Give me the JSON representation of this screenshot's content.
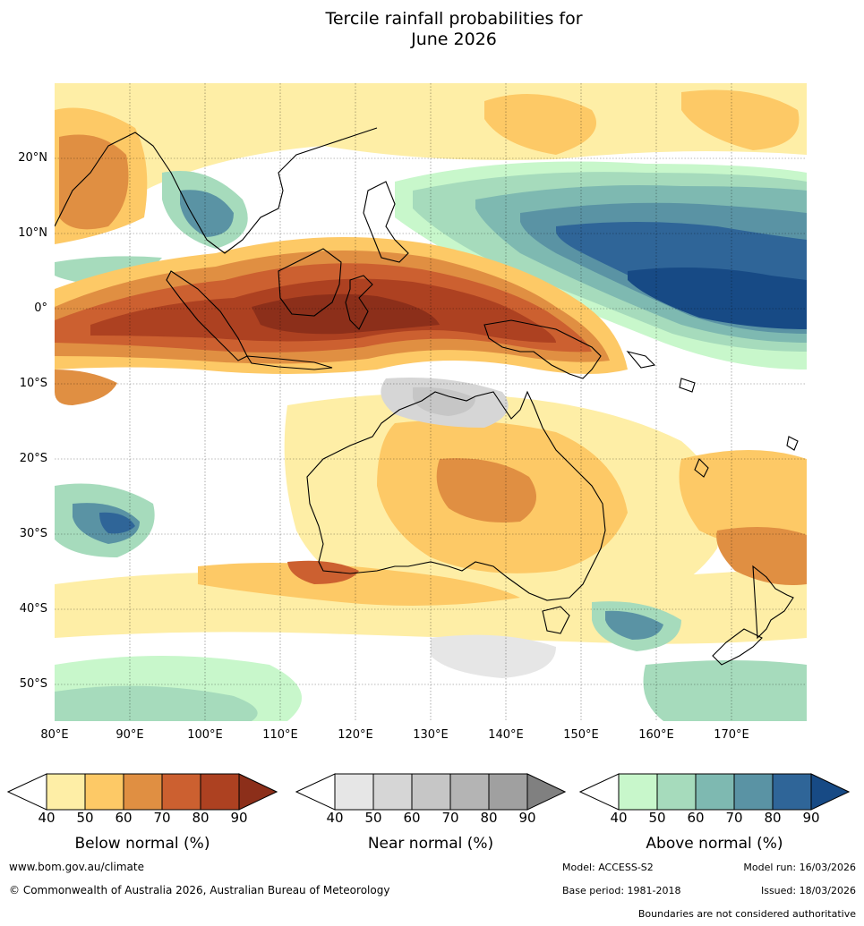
{
  "title_line1": "Tercile rainfall probabilities for",
  "title_line2": "June 2026",
  "map": {
    "lat_labels": [
      "20°N",
      "10°N",
      "0°",
      "10°S",
      "20°S",
      "30°S",
      "40°S",
      "50°S"
    ],
    "lon_labels": [
      "80°E",
      "90°E",
      "100°E",
      "110°E",
      "120°E",
      "130°E",
      "140°E",
      "150°E",
      "160°E",
      "170°E"
    ],
    "lat_range": [
      -55,
      30
    ],
    "lon_range": [
      80,
      180
    ],
    "gridlines": true
  },
  "legend": {
    "below": {
      "label": "Below normal (%)",
      "ticks": [
        "40",
        "50",
        "60",
        "70",
        "80",
        "90"
      ],
      "colors": [
        "#ffffff",
        "#feeea6",
        "#fdc966",
        "#e08f42",
        "#cc6030",
        "#ad4121",
        "#8c2f1a"
      ]
    },
    "near": {
      "label": "Near normal (%)",
      "ticks": [
        "40",
        "50",
        "60",
        "70",
        "80",
        "90"
      ],
      "colors": [
        "#ffffff",
        "#e6e6e6",
        "#d6d6d6",
        "#c6c6c6",
        "#b4b4b4",
        "#a0a0a0",
        "#808080"
      ]
    },
    "above": {
      "label": "Above normal (%)",
      "ticks": [
        "40",
        "50",
        "60",
        "70",
        "80",
        "90"
      ],
      "colors": [
        "#ffffff",
        "#c8f7cb",
        "#a6dbbc",
        "#7eb9b1",
        "#5a93a4",
        "#2f6598",
        "#174a85"
      ]
    }
  },
  "footer": {
    "website": "www.bom.gov.au/climate",
    "copyright": "© Commonwealth of Australia 2026, Australian Bureau of Meteorology",
    "model": "Model: ACCESS-S2",
    "model_run": "Model run: 16/03/2026",
    "base_period": "Base period: 1981-2018",
    "issued": "Issued: 18/03/2026",
    "disclaimer": "Boundaries are not considered authoritative"
  }
}
